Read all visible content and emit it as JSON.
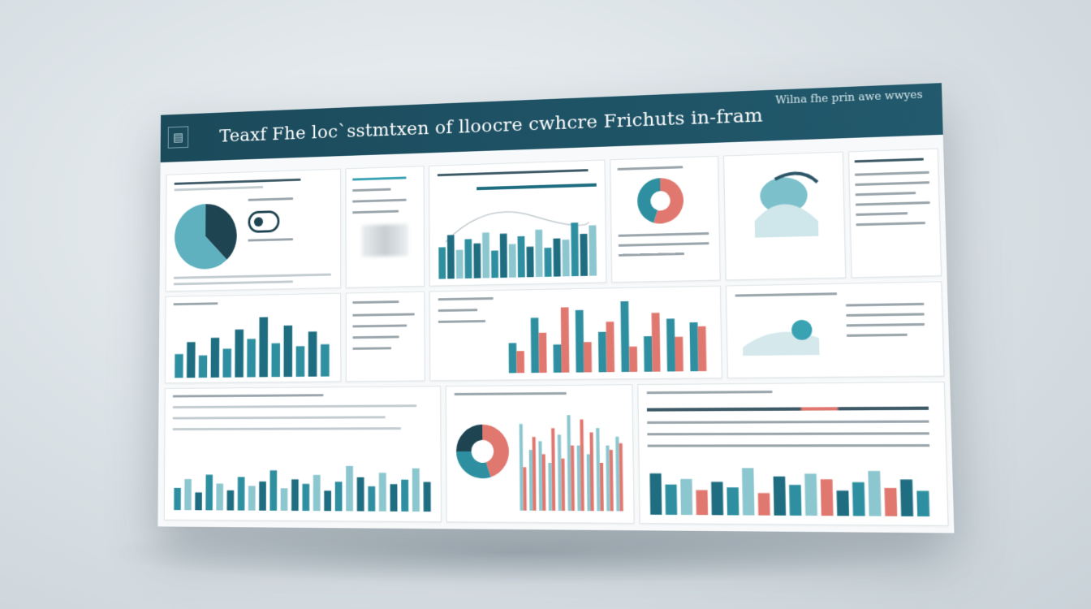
{
  "header": {
    "title": "Teaxf Fhe loc`sstmtxen of lloocre cwhcre Frichuts in-fram",
    "right_text": "Wilna fhe prin awe wwyes"
  },
  "icons": {
    "logo": "chart-logo-icon",
    "toggle": "toggle-icon",
    "person": "person-silhouette-icon"
  },
  "colors": {
    "header": "#1b4a5a",
    "teal": "#2e8fa0",
    "dark_teal": "#1e6d80",
    "light_teal": "#8cc6cf",
    "red": "#e07870",
    "gray": "#b8c2c7"
  },
  "chart_data": [
    {
      "type": "pie",
      "values": [
        38,
        62
      ],
      "colors": [
        "#1e4452",
        "#5fb1c0"
      ]
    },
    {
      "type": "bar",
      "values": [
        42,
        58,
        38,
        52,
        46,
        60,
        36,
        58,
        44,
        54,
        40,
        62,
        38,
        50,
        48,
        70,
        55,
        66
      ]
    },
    {
      "type": "bar",
      "values": [
        30,
        45,
        28,
        50,
        36,
        60,
        48,
        75,
        42,
        64,
        38,
        56,
        40
      ]
    },
    {
      "type": "bar",
      "series": [
        {
          "values": [
            30,
            55,
            28,
            62,
            40,
            70,
            35,
            52,
            48
          ]
        },
        {
          "values": [
            22,
            40,
            65,
            30,
            50,
            25,
            58,
            34,
            44
          ]
        }
      ]
    },
    {
      "type": "bar",
      "values": [
        10,
        14,
        8,
        16,
        12,
        9,
        15,
        11,
        13,
        18,
        10,
        14,
        12,
        16,
        9,
        13,
        20,
        15,
        11,
        17,
        12,
        14,
        19,
        13
      ]
    },
    {
      "type": "bar",
      "series": [
        {
          "values": [
            40,
            28,
            32,
            22,
            35,
            44,
            30,
            26,
            38,
            30,
            34
          ]
        },
        {
          "values": [
            20,
            34,
            26,
            38,
            24,
            30,
            42,
            36,
            22,
            28,
            31
          ]
        }
      ]
    },
    {
      "type": "bar",
      "values": [
        30,
        22,
        26,
        18,
        24,
        20,
        34,
        16,
        28,
        22,
        30,
        26,
        18,
        24,
        32,
        20,
        26,
        18
      ]
    },
    {
      "type": "pie",
      "values": [
        45,
        30,
        25
      ],
      "colors": [
        "#e07870",
        "#2e8fa0",
        "#1e4452"
      ]
    }
  ]
}
